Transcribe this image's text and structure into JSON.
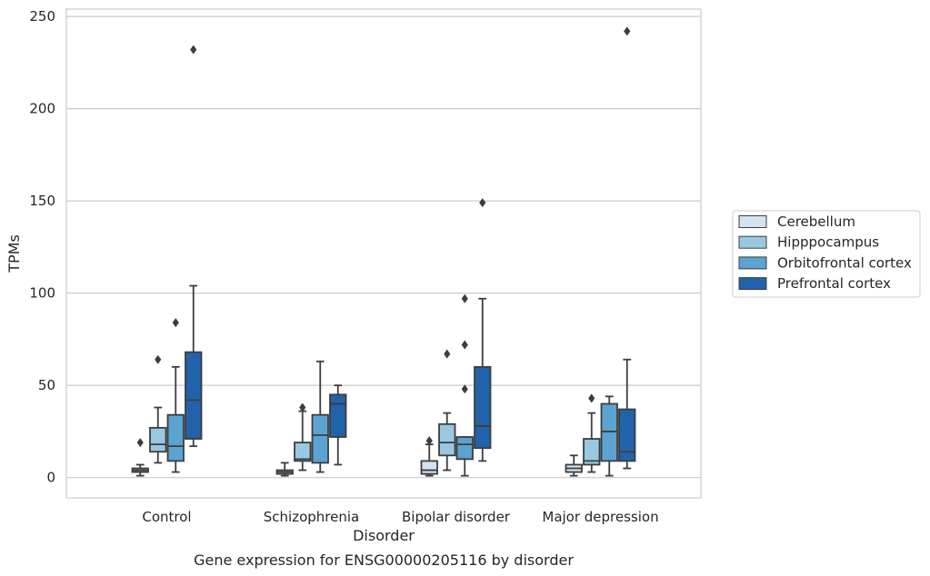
{
  "chart_data": {
    "type": "box",
    "caption": "Gene expression for ENSG00000205116 by disorder",
    "xlabel": "Disorder",
    "ylabel": "TPMs",
    "ylim": [
      -11,
      254
    ],
    "yticks": [
      0,
      50,
      100,
      150,
      200,
      250
    ],
    "grid": true,
    "legend_position": "right",
    "categories": [
      "Control",
      "Schizophrenia",
      "Bipolar disorder",
      "Major depression"
    ],
    "series": [
      {
        "name": "Cerebellum",
        "color": "#d3e3f3",
        "boxes": [
          {
            "whisker_low": 1,
            "q1": 3,
            "median": 4,
            "q3": 5,
            "whisker_high": 7,
            "outliers": [
              19
            ]
          },
          {
            "whisker_low": 1,
            "q1": 2,
            "median": 3,
            "q3": 4,
            "whisker_high": 8,
            "outliers": []
          },
          {
            "whisker_low": 1,
            "q1": 2,
            "median": 4,
            "q3": 9,
            "whisker_high": 18,
            "outliers": [
              20
            ]
          },
          {
            "whisker_low": 1,
            "q1": 3,
            "median": 5,
            "q3": 7,
            "whisker_high": 12,
            "outliers": []
          }
        ]
      },
      {
        "name": "Hipppocampus",
        "color": "#9ac8e0",
        "boxes": [
          {
            "whisker_low": 8,
            "q1": 14,
            "median": 18,
            "q3": 27,
            "whisker_high": 38,
            "outliers": [
              64
            ]
          },
          {
            "whisker_low": 4,
            "q1": 9,
            "median": 10,
            "q3": 19,
            "whisker_high": 36,
            "outliers": [
              38
            ]
          },
          {
            "whisker_low": 4,
            "q1": 12,
            "median": 19,
            "q3": 29,
            "whisker_high": 35,
            "outliers": [
              67
            ]
          },
          {
            "whisker_low": 3,
            "q1": 7,
            "median": 9,
            "q3": 21,
            "whisker_high": 35,
            "outliers": [
              43
            ]
          }
        ]
      },
      {
        "name": "Orbitofrontal cortex",
        "color": "#5ba3d0",
        "boxes": [
          {
            "whisker_low": 3,
            "q1": 9,
            "median": 17,
            "q3": 34,
            "whisker_high": 60,
            "outliers": [
              84
            ]
          },
          {
            "whisker_low": 3,
            "q1": 8,
            "median": 23,
            "q3": 34,
            "whisker_high": 63,
            "outliers": []
          },
          {
            "whisker_low": 1,
            "q1": 10,
            "median": 18,
            "q3": 22,
            "whisker_high": 22,
            "outliers": [
              48,
              72,
              97
            ]
          },
          {
            "whisker_low": 1,
            "q1": 9,
            "median": 25,
            "q3": 40,
            "whisker_high": 44,
            "outliers": []
          }
        ]
      },
      {
        "name": "Prefrontal cortex",
        "color": "#2163aa",
        "boxes": [
          {
            "whisker_low": 17,
            "q1": 21,
            "median": 42,
            "q3": 68,
            "whisker_high": 104,
            "outliers": [
              232
            ]
          },
          {
            "whisker_low": 7,
            "q1": 22,
            "median": 40,
            "q3": 45,
            "whisker_high": 50,
            "outliers": []
          },
          {
            "whisker_low": 9,
            "q1": 16,
            "median": 28,
            "q3": 60,
            "whisker_high": 97,
            "outliers": [
              149
            ]
          },
          {
            "whisker_low": 5,
            "q1": 9,
            "median": 14,
            "q3": 37,
            "whisker_high": 64,
            "outliers": [
              242
            ]
          }
        ]
      }
    ]
  }
}
